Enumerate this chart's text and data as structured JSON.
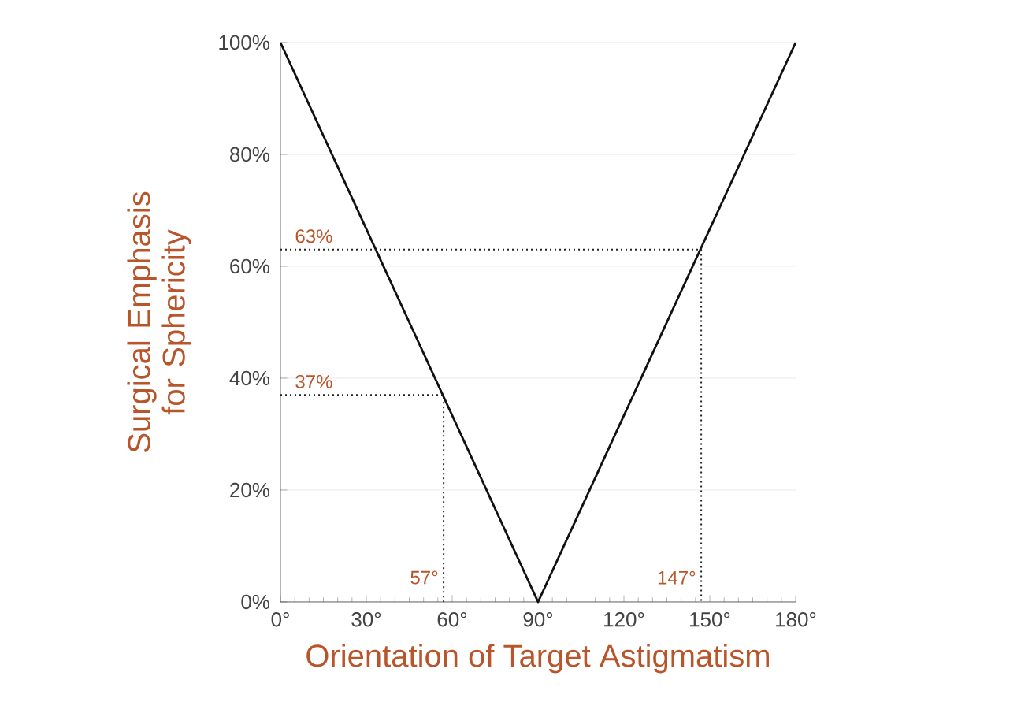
{
  "chart_data": {
    "type": "line",
    "xlabel": "Orientation of Target Astigmatism",
    "ylabel": "Surgical Emphasis for Sphericity",
    "x": [
      0,
      90,
      180
    ],
    "series": [
      {
        "color": "#111111",
        "values": [
          100,
          0,
          100
        ]
      },
      {
        "color": "#222222",
        "x": [
          0,
          147,
          147
        ],
        "values": [
          63,
          63,
          0
        ],
        "line_style": "dotted"
      },
      {
        "color": "#222222",
        "x": [
          0,
          57,
          57
        ],
        "values": [
          37,
          37,
          0
        ],
        "line_style": "dotted"
      }
    ],
    "xlim": [
      0,
      180
    ],
    "ylim": [
      0,
      100
    ],
    "xticks": [
      {
        "value": 0,
        "label": "0°"
      },
      {
        "value": 30,
        "label": "30°"
      },
      {
        "value": 60,
        "label": "60°"
      },
      {
        "value": 90,
        "label": "90°"
      },
      {
        "value": 120,
        "label": "120°"
      },
      {
        "value": 150,
        "label": "150°"
      },
      {
        "value": 180,
        "label": "180°"
      }
    ],
    "yticks": [
      {
        "value": 0,
        "label": "0%"
      },
      {
        "value": 20,
        "label": "20%"
      },
      {
        "value": 40,
        "label": "40%"
      },
      {
        "value": 60,
        "label": "60%"
      },
      {
        "value": 80,
        "label": "80%"
      },
      {
        "value": 100,
        "label": "100%"
      }
    ],
    "annotations": [
      {
        "text": "63%",
        "x": 0,
        "y": 63
      },
      {
        "text": "37%",
        "x": 0,
        "y": 37
      },
      {
        "text": "57°",
        "x": 57,
        "y": 0
      },
      {
        "text": "147°",
        "x": 147,
        "y": 0
      }
    ],
    "grid": "y",
    "marker": "none",
    "line_style": "solid"
  }
}
